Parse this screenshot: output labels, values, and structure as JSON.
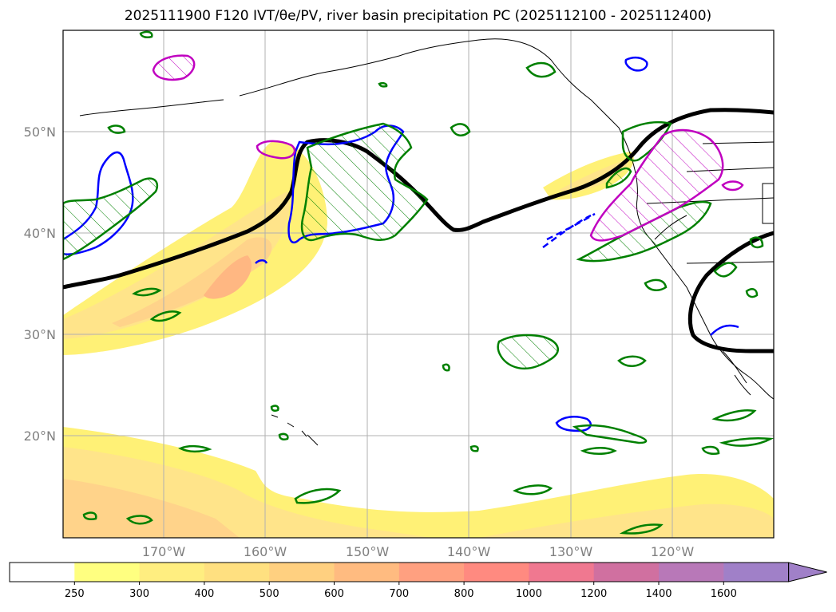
{
  "title": "2025111900 F120 IVT/θe/PV, river basin precipitation PC (2025112100 - 2025112400)",
  "map": {
    "lat_labels": [
      "50°N",
      "40°N",
      "30°N",
      "20°N"
    ],
    "lon_labels": [
      "170°W",
      "160°W",
      "150°W",
      "140°W",
      "130°W",
      "120°W"
    ],
    "colors": {
      "land_outline": "#000000",
      "theta_e": "#000000",
      "pv": "#0000ff",
      "precip_pc": "#008000",
      "magenta": "#c000c0",
      "grid": "#b0b0b0"
    }
  },
  "colorbar": {
    "ticks": [
      "250",
      "300",
      "400",
      "500",
      "600",
      "700",
      "800",
      "1000",
      "1200",
      "1400",
      "1600"
    ],
    "colors": [
      "#ffffff",
      "#ffff80",
      "#ffee80",
      "#ffe080",
      "#ffd080",
      "#ffbb80",
      "#ffa080",
      "#ff8a80",
      "#f07890",
      "#d070a0",
      "#b878b8",
      "#a080c8"
    ]
  }
}
